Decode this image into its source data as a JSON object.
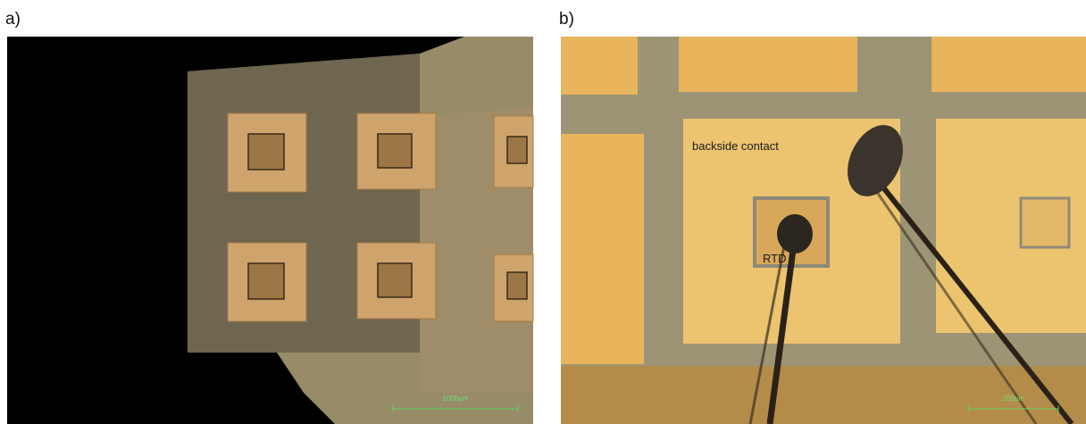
{
  "panels": [
    {
      "label": "a)",
      "scale_bar": "1000µm"
    },
    {
      "label": "b)",
      "scale_bar": "200µm",
      "annotations": [
        "backside contact",
        "RTD"
      ]
    }
  ]
}
